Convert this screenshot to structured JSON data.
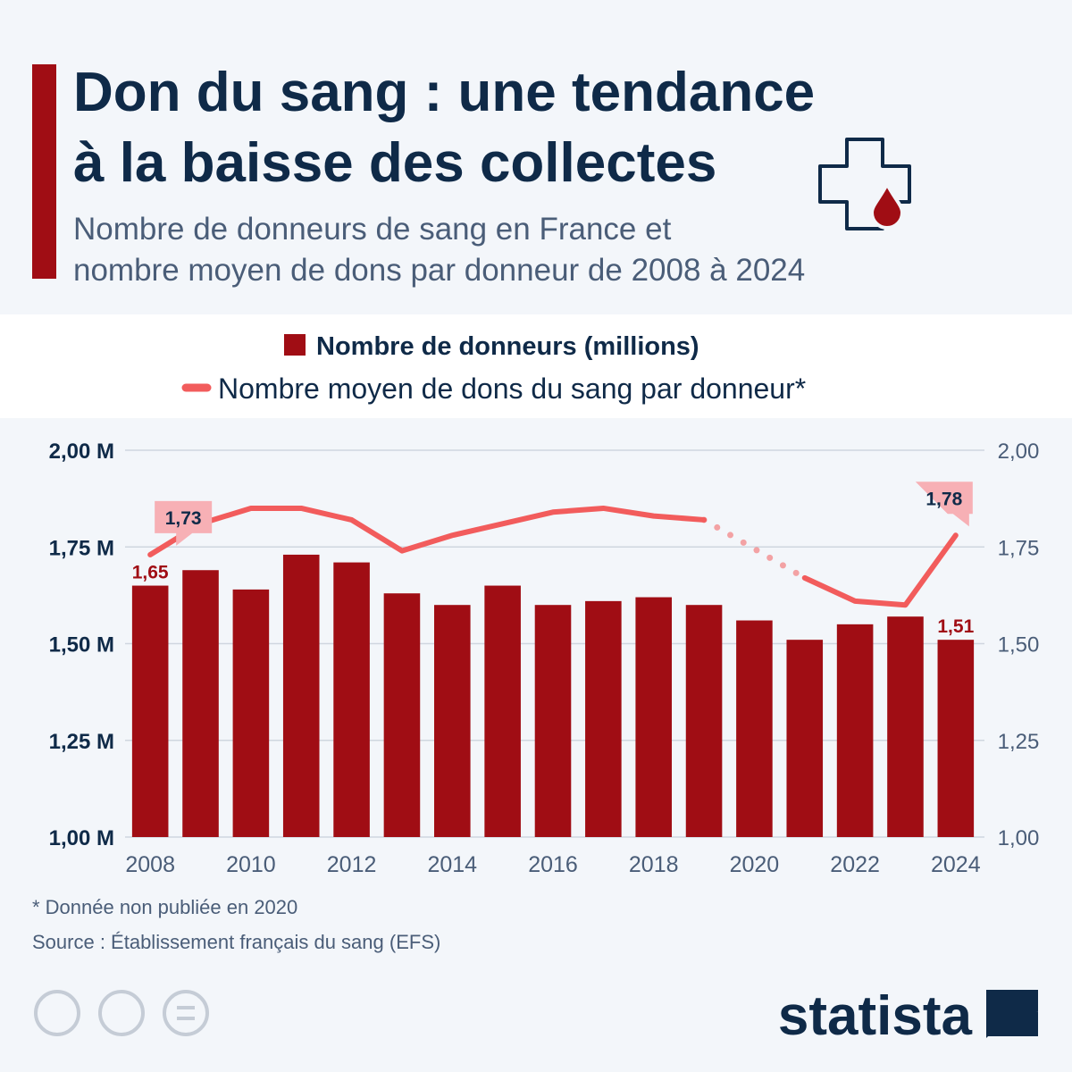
{
  "header": {
    "title": [
      "Don du sang : une tendance",
      "à la baisse des collectes"
    ],
    "subtitle": [
      "Nombre de donneurs de sang en France et",
      "nombre moyen de dons par donneur de 2008 à 2024"
    ]
  },
  "chart_data": {
    "type": "combo",
    "x": [
      2008,
      2009,
      2010,
      2011,
      2012,
      2013,
      2014,
      2015,
      2016,
      2017,
      2018,
      2019,
      2020,
      2021,
      2022,
      2023,
      2024
    ],
    "xlim": [
      2007.5,
      2024.5
    ],
    "xticks": [
      2008,
      2010,
      2012,
      2014,
      2016,
      2018,
      2020,
      2022,
      2024
    ],
    "ylim": [
      1,
      2
    ],
    "yticks": [
      {
        "value": 1,
        "label": "1,00 M"
      },
      {
        "value": 1.25,
        "label": "1,25 M"
      },
      {
        "value": 1.5,
        "label": "1,50 M"
      },
      {
        "value": 1.75,
        "label": "1,75 M"
      },
      {
        "value": 2,
        "label": "2,00 M"
      }
    ],
    "y2lim": [
      1,
      2
    ],
    "y2ticks": [
      {
        "value": 1,
        "label": "1,00"
      },
      {
        "value": 1.25,
        "label": "1,25"
      },
      {
        "value": 1.5,
        "label": "1,50"
      },
      {
        "value": 1.75,
        "label": "1,75"
      },
      {
        "value": 2,
        "label": "2,00"
      }
    ],
    "grid": true,
    "series": [
      {
        "name": "Nombre de donneurs (millions)",
        "type": "bar",
        "color": "#a00d14",
        "values": [
          1.65,
          1.69,
          1.64,
          1.73,
          1.71,
          1.63,
          1.6,
          1.65,
          1.6,
          1.61,
          1.62,
          1.6,
          1.56,
          1.51,
          1.55,
          1.57,
          1.51
        ],
        "value_labels": [
          "1,65",
          null,
          null,
          null,
          null,
          null,
          null,
          null,
          null,
          null,
          null,
          null,
          null,
          null,
          null,
          null,
          "1,51"
        ]
      },
      {
        "name": "Nombre moyen de dons du sang par donneur*",
        "type": "line",
        "color": "#f25c5c",
        "axis": "y2",
        "values": [
          1.73,
          1.81,
          1.85,
          1.85,
          1.82,
          1.74,
          1.78,
          1.81,
          1.84,
          1.85,
          1.83,
          1.82,
          null,
          1.67,
          1.61,
          1.6,
          1.78
        ],
        "value_labels": [
          "1,73",
          null,
          null,
          null,
          null,
          null,
          null,
          null,
          null,
          null,
          null,
          null,
          null,
          null,
          null,
          null,
          "1,78"
        ]
      }
    ]
  },
  "footer": {
    "note": "* Donnée non publiée en 2020",
    "source": "Source : Établissement français du sang (EFS)",
    "brand": "statista"
  }
}
